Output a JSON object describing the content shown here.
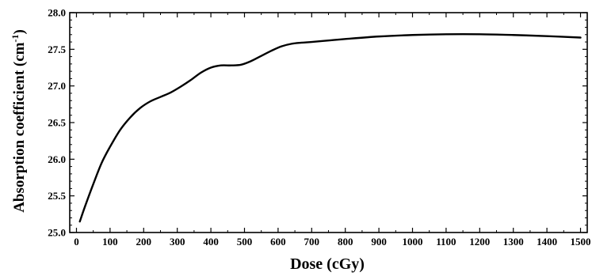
{
  "chart_data": {
    "type": "line",
    "xlabel": "Dose (cGy)",
    "ylabel_main": "Absorption coefficient (cm",
    "ylabel_sup": "-1",
    "ylabel_close": ")",
    "xlim": [
      -20,
      1520
    ],
    "ylim": [
      25.0,
      28.0
    ],
    "xticks": [
      0,
      100,
      200,
      300,
      400,
      500,
      600,
      700,
      800,
      900,
      1000,
      1100,
      1200,
      1300,
      1400,
      1500
    ],
    "yticks": [
      "25.0",
      "25.5",
      "26.0",
      "26.5",
      "27.0",
      "27.5",
      "28.0"
    ],
    "grid": false,
    "series": [
      {
        "color": "#000000",
        "x": [
          10,
          25,
          50,
          75,
          100,
          130,
          160,
          190,
          220,
          250,
          280,
          310,
          340,
          370,
          400,
          430,
          460,
          490,
          520,
          550,
          580,
          610,
          640,
          670,
          700,
          750,
          800,
          900,
          1000,
          1100,
          1200,
          1300,
          1400,
          1500
        ],
        "y": [
          25.15,
          25.35,
          25.66,
          25.95,
          26.17,
          26.4,
          26.57,
          26.7,
          26.79,
          26.85,
          26.91,
          26.99,
          27.08,
          27.18,
          27.25,
          27.28,
          27.28,
          27.29,
          27.34,
          27.41,
          27.48,
          27.54,
          27.575,
          27.59,
          27.6,
          27.62,
          27.64,
          27.675,
          27.695,
          27.705,
          27.705,
          27.695,
          27.68,
          27.66
        ]
      }
    ]
  }
}
